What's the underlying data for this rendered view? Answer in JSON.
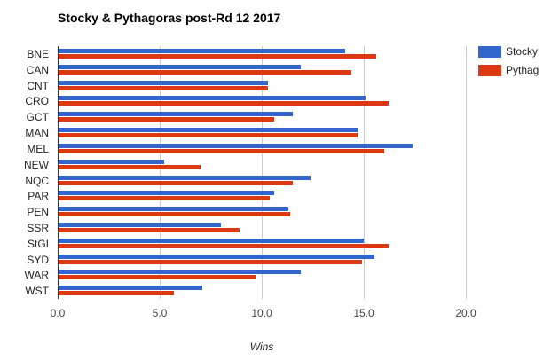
{
  "chart_data": {
    "type": "bar",
    "orientation": "horizontal",
    "title": "Stocky & Pythagoras post-Rd 12 2017",
    "xlabel": "Wins",
    "ylabel": "",
    "xlim": [
      0,
      20
    ],
    "xticks": [
      "0.0",
      "5.0",
      "10.0",
      "15.0",
      "20.0"
    ],
    "grid": true,
    "legend_position": "right",
    "categories": [
      "BNE",
      "CAN",
      "CNT",
      "CRO",
      "GCT",
      "MAN",
      "MEL",
      "NEW",
      "NQC",
      "PAR",
      "PEN",
      "SSR",
      "StGI",
      "SYD",
      "WAR",
      "WST"
    ],
    "series": [
      {
        "name": "Stocky",
        "color": "#3366cc",
        "values": [
          14.1,
          11.9,
          10.3,
          15.1,
          11.5,
          14.7,
          17.4,
          5.2,
          12.4,
          10.6,
          11.3,
          8.0,
          15.0,
          15.5,
          11.9,
          7.1
        ]
      },
      {
        "name": "Pythag",
        "color": "#dc3912",
        "values": [
          15.6,
          14.4,
          10.3,
          16.2,
          10.6,
          14.7,
          16.0,
          7.0,
          11.5,
          10.4,
          11.4,
          8.9,
          16.2,
          14.9,
          9.7,
          5.7
        ]
      }
    ]
  },
  "legend": {
    "items": [
      {
        "label": "Stocky",
        "color": "#3366cc"
      },
      {
        "label": "Pythag",
        "color": "#dc3912"
      }
    ]
  }
}
